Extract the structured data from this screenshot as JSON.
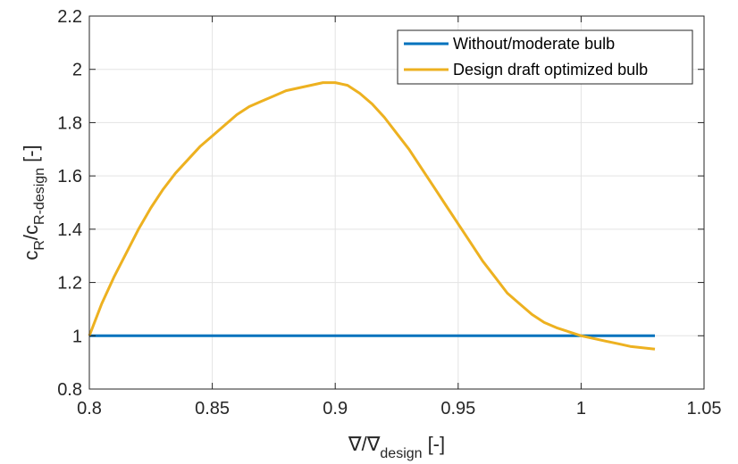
{
  "chart_data": {
    "type": "line",
    "xlabel": {
      "main": "∇/∇",
      "sub": "design",
      "unit": "[-]"
    },
    "ylabel": {
      "main": "c",
      "sub1": "R",
      "mid": "/c",
      "sub2": "R-design",
      "unit": "[-]"
    },
    "xlim": [
      0.8,
      1.05
    ],
    "ylim": [
      0.8,
      2.2
    ],
    "xticks": [
      0.8,
      0.85,
      0.9,
      0.95,
      1,
      1.05
    ],
    "xtick_labels": [
      "0.8",
      "0.85",
      "0.9",
      "0.95",
      "1",
      "1.05"
    ],
    "yticks": [
      0.8,
      1,
      1.2,
      1.4,
      1.6,
      1.8,
      2,
      2.2
    ],
    "ytick_labels": [
      "0.8",
      "1",
      "1.2",
      "1.4",
      "1.6",
      "1.8",
      "2",
      "2.2"
    ],
    "grid": true,
    "legend_position": "top-right",
    "series": [
      {
        "name": "Without/moderate bulb",
        "color": "#0072BD",
        "x": [
          0.8,
          1.03
        ],
        "y": [
          1.0,
          1.0
        ]
      },
      {
        "name": "Design draft optimized bulb",
        "color": "#EDB120",
        "x": [
          0.8,
          0.805,
          0.81,
          0.815,
          0.82,
          0.825,
          0.83,
          0.835,
          0.84,
          0.845,
          0.85,
          0.855,
          0.86,
          0.865,
          0.87,
          0.875,
          0.88,
          0.885,
          0.89,
          0.895,
          0.9,
          0.905,
          0.91,
          0.915,
          0.92,
          0.925,
          0.93,
          0.935,
          0.94,
          0.945,
          0.95,
          0.955,
          0.96,
          0.965,
          0.97,
          0.975,
          0.98,
          0.985,
          0.99,
          0.995,
          1.0,
          1.005,
          1.01,
          1.015,
          1.02,
          1.025,
          1.03
        ],
        "y": [
          1.0,
          1.12,
          1.22,
          1.31,
          1.4,
          1.48,
          1.55,
          1.61,
          1.66,
          1.71,
          1.75,
          1.79,
          1.83,
          1.86,
          1.88,
          1.9,
          1.92,
          1.93,
          1.94,
          1.95,
          1.95,
          1.94,
          1.91,
          1.87,
          1.82,
          1.76,
          1.7,
          1.63,
          1.56,
          1.49,
          1.42,
          1.35,
          1.28,
          1.22,
          1.16,
          1.12,
          1.08,
          1.05,
          1.03,
          1.015,
          1.0,
          0.99,
          0.98,
          0.97,
          0.96,
          0.955,
          0.95
        ]
      }
    ]
  }
}
